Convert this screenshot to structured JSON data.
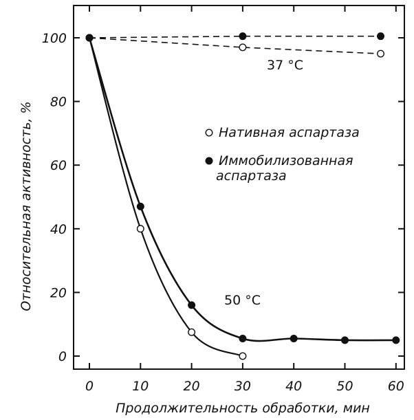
{
  "chart_data": {
    "type": "scatter",
    "title": "",
    "xlabel": "Продолжительность обработки, мин",
    "ylabel": "Относительная активность, %",
    "xlim": [
      -3,
      62
    ],
    "ylim": [
      -4,
      110
    ],
    "xticks": [
      0,
      10,
      20,
      30,
      40,
      50,
      60
    ],
    "yticks": [
      0,
      20,
      40,
      60,
      80,
      100
    ],
    "grid": false,
    "legend_position": "center-right",
    "legend": [
      {
        "marker": "open-circle",
        "lines": [
          "Нативная аспартаза"
        ]
      },
      {
        "marker": "filled-circle",
        "lines": [
          "Иммобилизованная",
          "аспартаза"
        ]
      }
    ],
    "annotations": [
      {
        "text": "37 °C",
        "x": 42,
        "y": 92
      },
      {
        "text": "50 °C",
        "x": 36,
        "y": 18
      }
    ],
    "series": [
      {
        "marker": "open",
        "style": "dashed",
        "group": "37 °C",
        "x": [
          0,
          30,
          57
        ],
        "y": [
          100,
          97,
          95
        ]
      },
      {
        "marker": "filled",
        "style": "dashed",
        "group": "37 °C",
        "x": [
          0,
          30,
          57
        ],
        "y": [
          100,
          100.5,
          100.5
        ]
      },
      {
        "marker": "open",
        "style": "solid",
        "group": "50 °C",
        "x": [
          0,
          10,
          20,
          30
        ],
        "y": [
          100,
          40,
          7.5,
          0
        ]
      },
      {
        "marker": "filled",
        "style": "solid",
        "group": "50 °C",
        "x": [
          0,
          10,
          20,
          30,
          40,
          50,
          60
        ],
        "y": [
          100,
          47,
          16,
          5.5,
          5.5,
          5,
          5
        ]
      }
    ]
  }
}
